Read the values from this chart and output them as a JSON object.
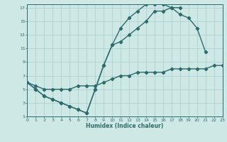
{
  "xlabel": "Humidex (Indice chaleur)",
  "xlim": [
    0,
    23
  ],
  "ylim": [
    1,
    17.5
  ],
  "xticks": [
    0,
    1,
    2,
    3,
    4,
    5,
    6,
    7,
    8,
    9,
    10,
    11,
    12,
    13,
    14,
    15,
    16,
    17,
    18,
    19,
    20,
    21,
    22,
    23
  ],
  "yticks": [
    1,
    3,
    5,
    7,
    9,
    11,
    13,
    15,
    17
  ],
  "bg_color": "#cde8e5",
  "grid_color": "#a8cece",
  "line_color": "#2e6b6b",
  "line1_x": [
    0,
    1,
    2,
    3,
    4,
    5,
    6,
    7,
    8,
    9,
    10,
    11,
    12,
    13,
    14,
    15,
    16,
    17,
    18,
    19,
    20,
    21
  ],
  "line1_y": [
    6,
    5,
    4,
    3.5,
    3,
    2.5,
    2,
    1.5,
    5,
    8.5,
    11.5,
    12,
    13,
    14,
    15,
    16.5,
    16.5,
    17,
    16,
    15.5,
    14,
    10.5
  ],
  "line2_x": [
    0,
    1,
    2,
    3,
    4,
    5,
    6,
    7,
    8,
    9,
    10,
    11,
    12,
    13,
    14,
    15,
    16,
    17,
    18
  ],
  "line2_y": [
    6,
    5,
    4,
    3.5,
    3,
    2.5,
    2,
    1.5,
    5,
    8.5,
    11.5,
    14,
    15.5,
    16.5,
    17.5,
    17.5,
    17.5,
    17,
    17
  ],
  "line3_x": [
    0,
    1,
    2,
    3,
    4,
    5,
    6,
    7,
    8,
    9,
    10,
    11,
    12,
    13,
    14,
    15,
    16,
    17,
    18,
    19,
    20,
    21,
    22,
    23
  ],
  "line3_y": [
    6,
    5.5,
    5,
    5,
    5,
    5,
    5.5,
    5.5,
    5.5,
    6,
    6.5,
    7,
    7,
    7.5,
    7.5,
    7.5,
    7.5,
    8,
    8,
    8,
    8,
    8,
    8.5,
    8.5
  ]
}
